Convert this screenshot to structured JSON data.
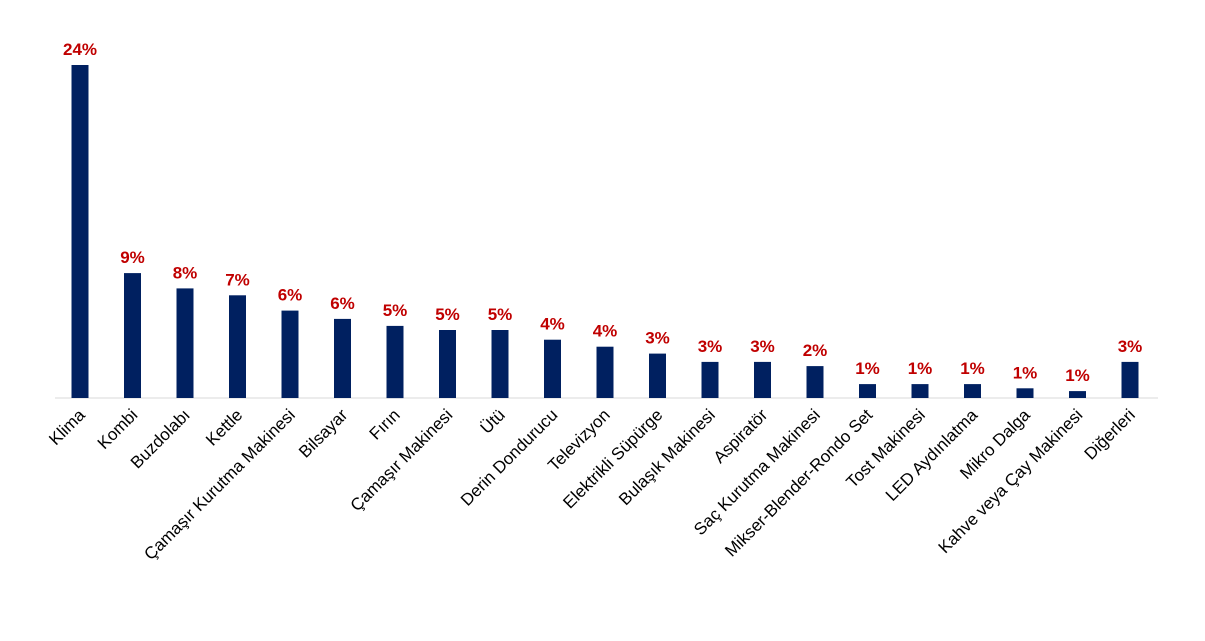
{
  "chart_data": {
    "type": "bar",
    "title": "",
    "xlabel": "",
    "ylabel": "",
    "grid": false,
    "categories": [
      "Klima",
      "Kombi",
      "Buzdolabı",
      "Kettle",
      "Çamaşır Kurutma Makinesi",
      "Bilsayar",
      "Fırın",
      "Çamaşır Makinesi",
      "Ütü",
      "Derin Dondurucu",
      "Televizyon",
      "Elektrikli Süpürge",
      "Bulaşık Makinesi",
      "Aspiratör",
      "Saç Kurutma Makinesi",
      "Mikser-Blender-Rondo Set",
      "Tost Makinesi",
      "LED Aydınlatma",
      "Mikro Dalga",
      "Kahve veya Çay Makinesi",
      "Diğerleri"
    ],
    "values": [
      24,
      9,
      8,
      7,
      6,
      6,
      5,
      5,
      5,
      4,
      4,
      3,
      3,
      3,
      2,
      1,
      1,
      1,
      1,
      1,
      3
    ],
    "labels": [
      "24%",
      "9%",
      "8%",
      "7%",
      "6%",
      "6%",
      "5%",
      "5%",
      "5%",
      "4%",
      "4%",
      "3%",
      "3%",
      "3%",
      "2%",
      "1%",
      "1%",
      "1%",
      "1%",
      "1%",
      "3%"
    ],
    "plot_values": [
      24.0,
      9.0,
      7.9,
      7.4,
      6.3,
      5.7,
      5.2,
      4.9,
      4.9,
      4.2,
      3.7,
      3.2,
      2.6,
      2.6,
      2.3,
      1.0,
      1.0,
      1.0,
      0.7,
      0.5,
      2.6
    ],
    "ylim": [
      0,
      24
    ]
  },
  "colors": {
    "bar": "#002060",
    "value_label": "#C00000",
    "axis": "#d9d9d9"
  }
}
